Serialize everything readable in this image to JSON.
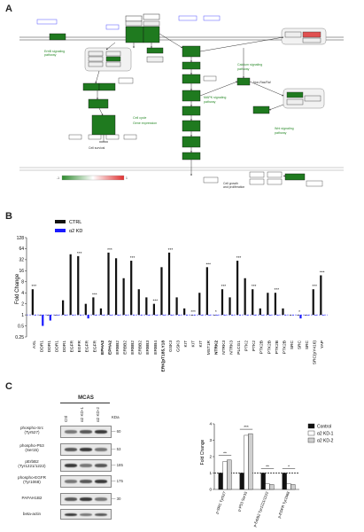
{
  "panels": {
    "a": "A",
    "b": "B",
    "c": "C"
  },
  "pathway": {
    "colors": {
      "node_green": "#1f7a1f",
      "node_light": "#eeeeee",
      "node_red": "#e05050",
      "edge": "#333333",
      "label_green": "#2a8a2a"
    },
    "legend_gradient": [
      "#2e8b2e",
      "#ffffff",
      "#e03030"
    ]
  },
  "chart_b": {
    "legend": {
      "ctrl": "CTRL",
      "kd": "α2 KD"
    },
    "ylabel": "Fold Change",
    "yticks": [
      "128",
      "64",
      "32",
      "16",
      "8",
      "4",
      "2",
      "1",
      "0.5",
      "0.25"
    ],
    "colors": {
      "ctrl": "#111111",
      "kd": "#1a1aff",
      "baseline": "#1a1aff"
    },
    "sig": "***"
  },
  "chart_data": [
    {
      "type": "bar",
      "ylabel": "Fold Change",
      "scale": "log2",
      "ylim": [
        0.25,
        128
      ],
      "categories": [
        "AXL",
        "DDR1",
        "DDR1",
        "DDR1",
        "DDR1",
        "EGFR",
        "EGFR",
        "EGFR",
        "EGFR",
        "EPHA2",
        "EPHA2",
        "ERBB2",
        "ERBB2",
        "ERBB2",
        "ERBB2",
        "ERBB3",
        "ERBB4",
        "ERK(pT185,Y18",
        "GSK3",
        "GSK3",
        "KIT",
        "KIT",
        "KIT",
        "MST1R",
        "NTRK2",
        "NTRK3",
        "NTRK3",
        "PLCG1",
        "PTK2",
        "PTK2",
        "PTK2B",
        "PTK2B",
        "PTK2B",
        "PTK2B",
        "SRC",
        "SRC",
        "SRC",
        "SRC(pY416)",
        "YAP"
      ],
      "bold_categories": [
        "EPHA2",
        "ERK(pT185,Y18",
        "NTRK2"
      ],
      "series": [
        {
          "name": "CTRL",
          "values": [
            5,
            1,
            1,
            1,
            2.5,
            45,
            40,
            2,
            3,
            1.5,
            50,
            35,
            10,
            30,
            5,
            3,
            2,
            20,
            50,
            3,
            1.5,
            1,
            4,
            20,
            1,
            5,
            3,
            30,
            10,
            5,
            1.5,
            4,
            4,
            1.5,
            1,
            1,
            1,
            5,
            12
          ]
        },
        {
          "name": "α2 KD",
          "values": [
            1,
            0.5,
            0.7,
            1,
            1,
            1,
            1,
            0.8,
            1,
            1,
            1,
            1,
            1,
            1,
            1,
            1,
            1,
            1,
            1,
            1,
            1,
            1,
            1,
            1,
            1,
            1,
            1,
            1,
            1,
            1,
            1,
            1,
            1,
            1,
            1,
            0.8,
            1,
            1,
            1
          ]
        }
      ],
      "significance": [
        {
          "category_index": 0,
          "label": "***"
        },
        {
          "category_index": 6,
          "label": "***"
        },
        {
          "category_index": 8,
          "label": "***"
        },
        {
          "category_index": 10,
          "label": "***"
        },
        {
          "category_index": 13,
          "label": "***"
        },
        {
          "category_index": 16,
          "label": "***"
        },
        {
          "category_index": 18,
          "label": "***"
        },
        {
          "category_index": 21,
          "label": "***"
        },
        {
          "category_index": 23,
          "label": "***"
        },
        {
          "category_index": 25,
          "label": "***"
        },
        {
          "category_index": 27,
          "label": "***"
        },
        {
          "category_index": 29,
          "label": "***"
        },
        {
          "category_index": 32,
          "label": "***"
        },
        {
          "category_index": 37,
          "label": "***"
        },
        {
          "category_index": 38,
          "label": "***"
        },
        {
          "category_index": 35,
          "label": "*"
        },
        {
          "category_index": 24,
          "label": "*"
        }
      ]
    },
    {
      "type": "bar",
      "ylabel": "Fold Change",
      "ylim": [
        0,
        4
      ],
      "categories": [
        "p-SRC Tyr527",
        "p-P53 Ser15",
        "p-ErbB2 Tyr1221/1222",
        "p-EGFR Tyr1068"
      ],
      "series": [
        {
          "name": "Control",
          "values": [
            1,
            1,
            1,
            1
          ]
        },
        {
          "name": "α2 KD-1",
          "values": [
            1.7,
            3.3,
            0.35,
            0.35
          ]
        },
        {
          "name": "α2 KD-2",
          "values": [
            1.8,
            3.4,
            0.3,
            0.3
          ]
        }
      ],
      "significance": [
        "**",
        "***",
        "**",
        "*"
      ]
    }
  ],
  "western": {
    "cell_line": "MCAS",
    "lanes": [
      "Ctrl",
      "α2 KD-1",
      "α2 KD-2"
    ],
    "kda_header": "KDa",
    "rows": [
      {
        "label": "phospho-Src\n(Tyr527)",
        "kda": "60"
      },
      {
        "label": "phospho-P53\n(Ser15)",
        "kda": "53"
      },
      {
        "label": "pErbB2\n(Tyr1221/1222)",
        "kda": "185"
      },
      {
        "label": "phospho-EGFR\n(Tyr1068)",
        "kda": "175"
      },
      {
        "label": "PAFAH1B2",
        "kda": "30"
      },
      {
        "label": "beta-actin",
        "kda": ""
      }
    ]
  },
  "chart_c": {
    "legend": [
      "Control",
      "α2 KD-1",
      "α2 KD-2"
    ],
    "yticks": [
      "4",
      "3",
      "2",
      "1",
      "0"
    ]
  }
}
